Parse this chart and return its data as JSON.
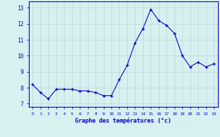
{
  "x": [
    0,
    1,
    2,
    3,
    4,
    5,
    6,
    7,
    8,
    9,
    10,
    11,
    12,
    13,
    14,
    15,
    16,
    17,
    18,
    19,
    20,
    21,
    22,
    23
  ],
  "y": [
    8.2,
    7.7,
    7.3,
    7.9,
    7.9,
    7.9,
    7.8,
    7.8,
    7.7,
    7.5,
    7.5,
    8.5,
    9.4,
    10.8,
    11.7,
    12.9,
    12.2,
    11.9,
    11.4,
    10.0,
    9.3,
    9.6,
    9.3,
    9.5
  ],
  "line_color": "#0000cc",
  "marker": "+",
  "marker_size": 3.5,
  "bg_color": "#d8f0f0",
  "grid_color": "#c0d8d8",
  "xlabel": "Graphe des températures (°c)",
  "xlabel_color": "#0000cc",
  "ylabel_ticks": [
    7,
    8,
    9,
    10,
    11,
    12,
    13
  ],
  "xlim": [
    -0.5,
    23.5
  ],
  "ylim": [
    6.8,
    13.4
  ],
  "tick_label_color": "#0000cc",
  "spine_color": "#0000cc"
}
